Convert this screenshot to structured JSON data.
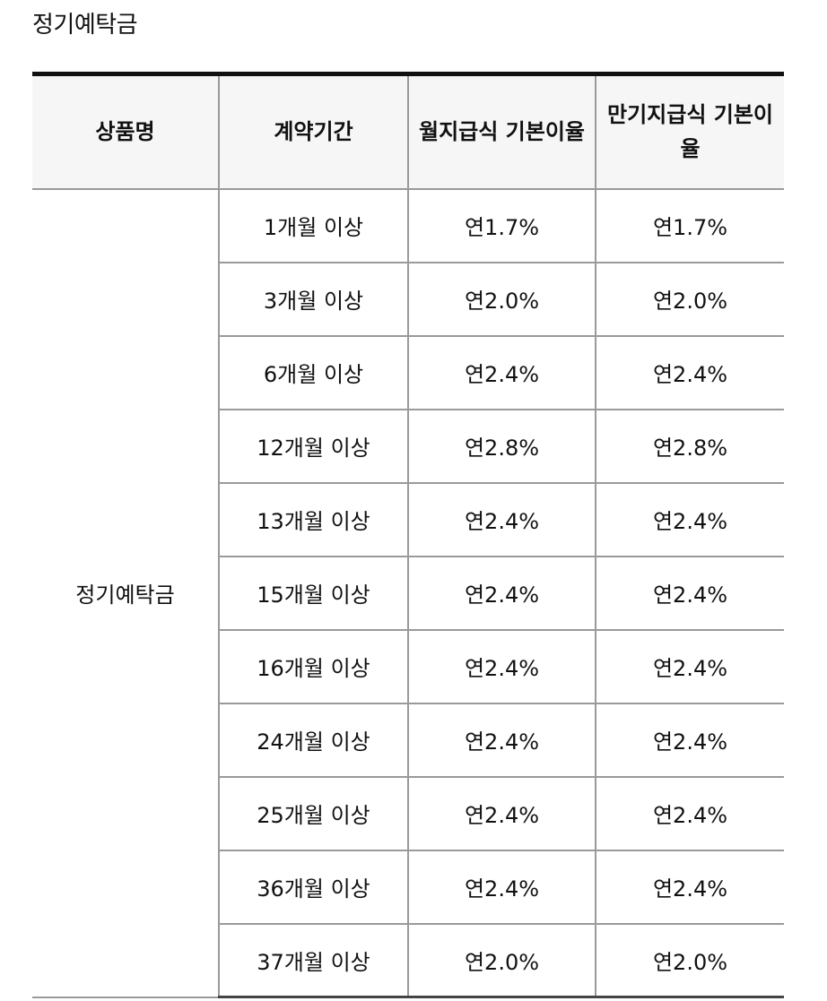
{
  "page": {
    "title": "정기예탁금"
  },
  "table": {
    "headers": {
      "product": "상품명",
      "term": "계약기간",
      "monthly_rate": "월지급식 기본이율",
      "maturity_rate": "만기지급식 기본이율"
    },
    "product_name": "정기예탁금",
    "rows": [
      {
        "term": "1개월 이상",
        "monthly": "연1.7%",
        "maturity": "연1.7%"
      },
      {
        "term": "3개월 이상",
        "monthly": "연2.0%",
        "maturity": "연2.0%"
      },
      {
        "term": "6개월 이상",
        "monthly": "연2.4%",
        "maturity": "연2.4%"
      },
      {
        "term": "12개월 이상",
        "monthly": "연2.8%",
        "maturity": "연2.8%"
      },
      {
        "term": "13개월 이상",
        "monthly": "연2.4%",
        "maturity": "연2.4%"
      },
      {
        "term": "15개월 이상",
        "monthly": "연2.4%",
        "maturity": "연2.4%"
      },
      {
        "term": "16개월 이상",
        "monthly": "연2.4%",
        "maturity": "연2.4%"
      },
      {
        "term": "24개월 이상",
        "monthly": "연2.4%",
        "maturity": "연2.4%"
      },
      {
        "term": "25개월 이상",
        "monthly": "연2.4%",
        "maturity": "연2.4%"
      },
      {
        "term": "36개월 이상",
        "monthly": "연2.4%",
        "maturity": "연2.4%"
      },
      {
        "term": "37개월 이상",
        "monthly": "연2.0%",
        "maturity": "연2.0%"
      }
    ]
  }
}
